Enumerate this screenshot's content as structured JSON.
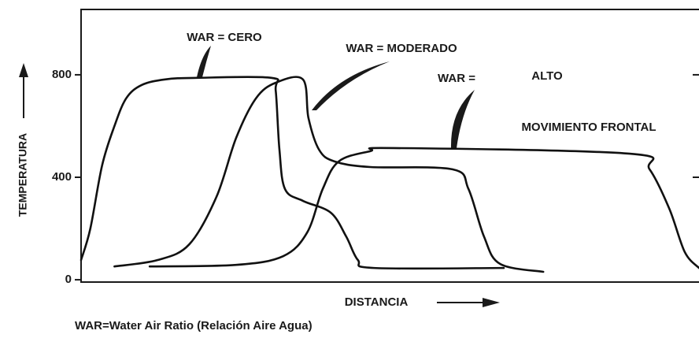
{
  "chart_data": {
    "type": "line",
    "y_label": "TEMPERATURA",
    "x_label": "DISTANCIA",
    "footnote": "WAR=Water Air Ratio (Relación Aire Agua)",
    "annotations": [
      "WAR = CERO",
      "WAR = MODERADO",
      "WAR =",
      "ALTO",
      "MOVIMIENTO FRONTAL"
    ],
    "xlim": [
      0,
      100
    ],
    "ylim": [
      -9,
      1055
    ],
    "yticks": [
      0,
      400,
      800
    ],
    "series": [
      {
        "color": "#111111",
        "x": [
          0,
          1.5,
          3.4,
          5.4,
          7.3,
          9.8,
          13.6,
          18.7,
          30.8,
          31.5,
          32.1,
          33.0,
          35.9,
          40.4,
          42.9,
          44.8,
          47.4,
          68.4
        ],
        "values": [
          77,
          200,
          446,
          600,
          708,
          760,
          782,
          788,
          788,
          738,
          508,
          354,
          308,
          262,
          169,
          77,
          46,
          46
        ]
      },
      {
        "color": "#111111",
        "x": [
          5.4,
          12.4,
          17.5,
          21.9,
          25.1,
          28.3,
          31.5,
          35.9,
          36.8,
          38.5,
          41.0,
          46.8,
          60.1,
          62.7,
          65.2,
          67.8,
          74.8
        ],
        "values": [
          52,
          77,
          138,
          323,
          554,
          708,
          769,
          782,
          631,
          508,
          462,
          440,
          431,
          354,
          169,
          62,
          31
        ]
      },
      {
        "color": "#111111",
        "x": [
          11.1,
          25.1,
          32.7,
          36.6,
          39.1,
          41.7,
          46.8,
          50.6,
          88.8,
          92.0,
          95.2,
          97.7,
          100
        ],
        "values": [
          52,
          58,
          92,
          185,
          354,
          462,
          502,
          514,
          492,
          431,
          277,
          108,
          46
        ]
      }
    ]
  }
}
